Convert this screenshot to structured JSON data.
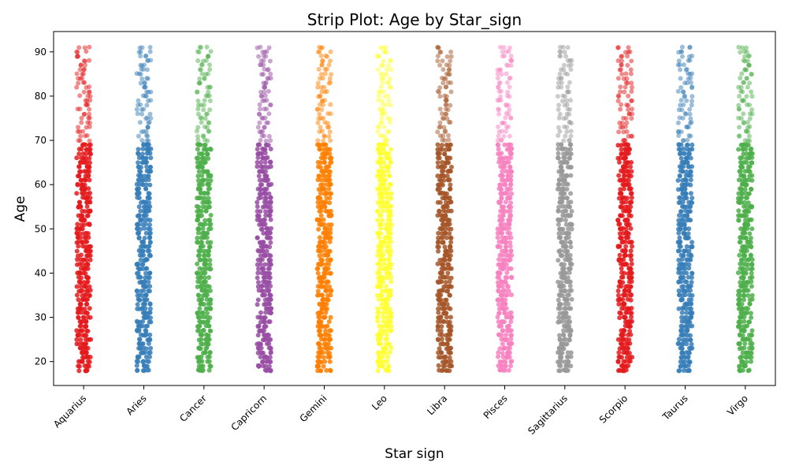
{
  "chart_data": {
    "type": "scatter",
    "subtype": "strip",
    "title": "Strip Plot: Age by Star_sign",
    "xlabel": "Star sign",
    "ylabel": "Age",
    "ylim": [
      14.6,
      94.6
    ],
    "yticks": [
      20,
      30,
      40,
      50,
      60,
      70,
      80,
      90
    ],
    "grid": false,
    "categories": [
      "Aquarius",
      "Aries",
      "Cancer",
      "Capricorn",
      "Gemini",
      "Leo",
      "Libra",
      "Pisces",
      "Sagittarius",
      "Scorpio",
      "Taurus",
      "Virgo"
    ],
    "series": [
      {
        "category": "Aquarius",
        "min": 18,
        "max": 91,
        "color": "#e41a1c"
      },
      {
        "category": "Aries",
        "min": 18,
        "max": 91,
        "color": "#377eb8"
      },
      {
        "category": "Cancer",
        "min": 18,
        "max": 91,
        "color": "#4daf4a"
      },
      {
        "category": "Capricorn",
        "min": 18,
        "max": 91,
        "color": "#984ea3"
      },
      {
        "category": "Gemini",
        "min": 18,
        "max": 91,
        "color": "#ff7f00"
      },
      {
        "category": "Leo",
        "min": 18,
        "max": 91,
        "color": "#ffff33"
      },
      {
        "category": "Libra",
        "min": 18,
        "max": 91,
        "color": "#a65628"
      },
      {
        "category": "Pisces",
        "min": 18,
        "max": 91,
        "color": "#f781bf"
      },
      {
        "category": "Sagittarius",
        "min": 18,
        "max": 91,
        "color": "#999999"
      },
      {
        "category": "Scorpio",
        "min": 18,
        "max": 91,
        "color": "#e41a1c"
      },
      {
        "category": "Taurus",
        "min": 18,
        "max": 91,
        "color": "#377eb8"
      },
      {
        "category": "Virgo",
        "min": 18,
        "max": 91,
        "color": "#4daf4a"
      }
    ]
  }
}
